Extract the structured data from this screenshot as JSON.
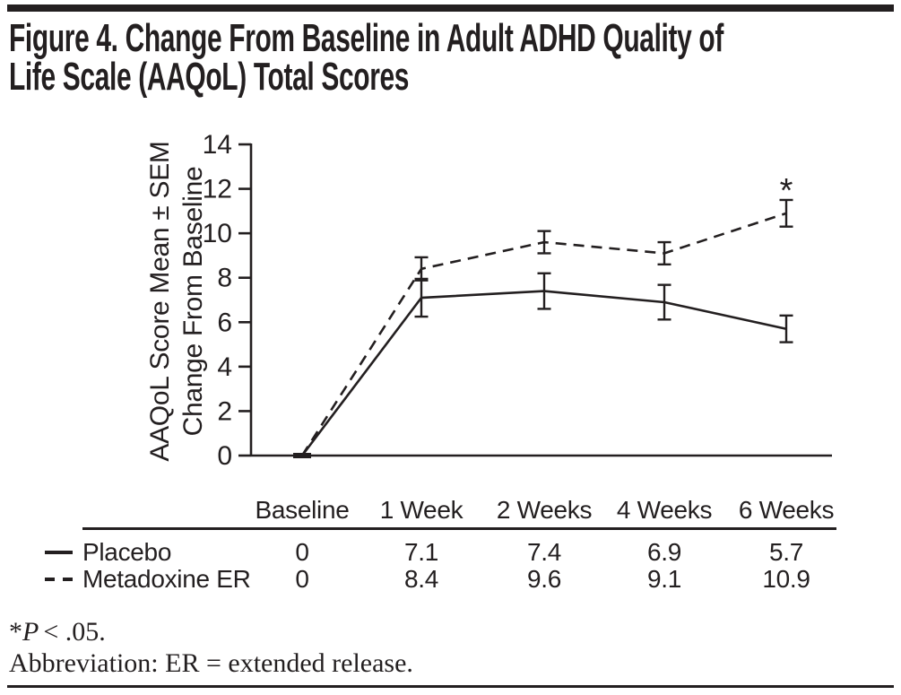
{
  "figure": {
    "title": "Figure 4. Change From Baseline in Adult ADHD Quality of Life Scale (AAQoL) Total Scores",
    "title_lines": [
      "Figure 4. Change From Baseline in Adult ADHD Quality of",
      "Life Scale (AAQoL) Total Scores"
    ]
  },
  "chart_data": {
    "type": "line",
    "categories": [
      "Baseline",
      "1 Week",
      "2 Weeks",
      "4 Weeks",
      "6 Weeks"
    ],
    "series": [
      {
        "name": "Placebo",
        "line_style": "solid",
        "values": [
          0,
          7.1,
          7.4,
          6.9,
          5.7
        ],
        "sem": [
          0,
          0.85,
          0.8,
          0.78,
          0.6
        ]
      },
      {
        "name": "Metadoxine ER",
        "line_style": "dashed",
        "values": [
          0,
          8.4,
          9.6,
          9.1,
          10.9
        ],
        "sem": [
          0,
          0.52,
          0.5,
          0.5,
          0.6
        ]
      }
    ],
    "ylabel": "AAQoL Score Mean ± SEM Change From Baseline",
    "ylabel_lines": [
      "AAQoL Score Mean ± SEM",
      "Change From Baseline"
    ],
    "xlabel": "",
    "ylim": [
      0,
      14
    ],
    "yticks": [
      0,
      2,
      4,
      6,
      8,
      10,
      12,
      14
    ],
    "error_bars": "SEM",
    "grid": false,
    "legend_position": "table-rows-left",
    "annotations": [
      {
        "text": "*",
        "series": "Metadoxine ER",
        "category": "6 Weeks",
        "position": "above-error-bar"
      }
    ]
  },
  "table": {
    "headers": [
      "Baseline",
      "1 Week",
      "2 Weeks",
      "4 Weeks",
      "6 Weeks"
    ],
    "rows": [
      {
        "label": "Placebo",
        "marker": "solid-line",
        "values": [
          "0",
          "7.1",
          "7.4",
          "6.9",
          "5.7"
        ]
      },
      {
        "label": "Metadoxine ER",
        "marker": "dashed-line",
        "values": [
          "0",
          "8.4",
          "9.6",
          "9.1",
          "10.9"
        ]
      }
    ]
  },
  "footnotes": {
    "significance": {
      "marker": "*",
      "stat_symbol": "P",
      "condition": "< .05."
    },
    "abbreviation": "Abbreviation: ER = extended release."
  },
  "colors": {
    "ink": "#231f20",
    "background": "#ffffff"
  }
}
